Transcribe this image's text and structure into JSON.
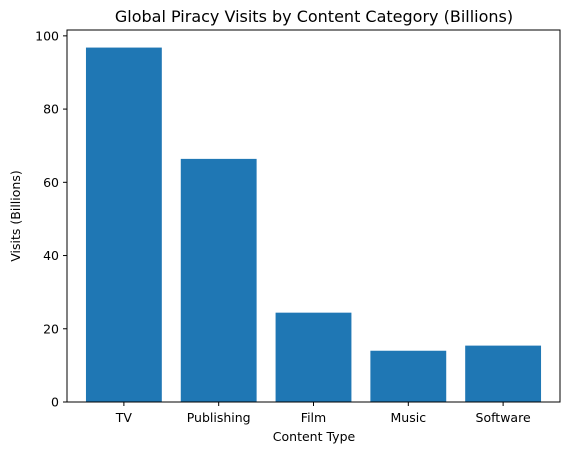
{
  "chart_data": {
    "type": "bar",
    "title": "Global Piracy Visits by Content Category (Billions)",
    "xlabel": "Content Type",
    "ylabel": "Visits (Billions)",
    "categories": [
      "TV",
      "Publishing",
      "Film",
      "Music",
      "Software"
    ],
    "values": [
      96.8,
      66.4,
      24.4,
      14.0,
      15.4
    ],
    "ylim": [
      0,
      101.6
    ],
    "yticks": [
      0,
      20,
      40,
      60,
      80,
      100
    ],
    "bar_color": "#1f77b4",
    "grid": false,
    "legend": "none"
  }
}
